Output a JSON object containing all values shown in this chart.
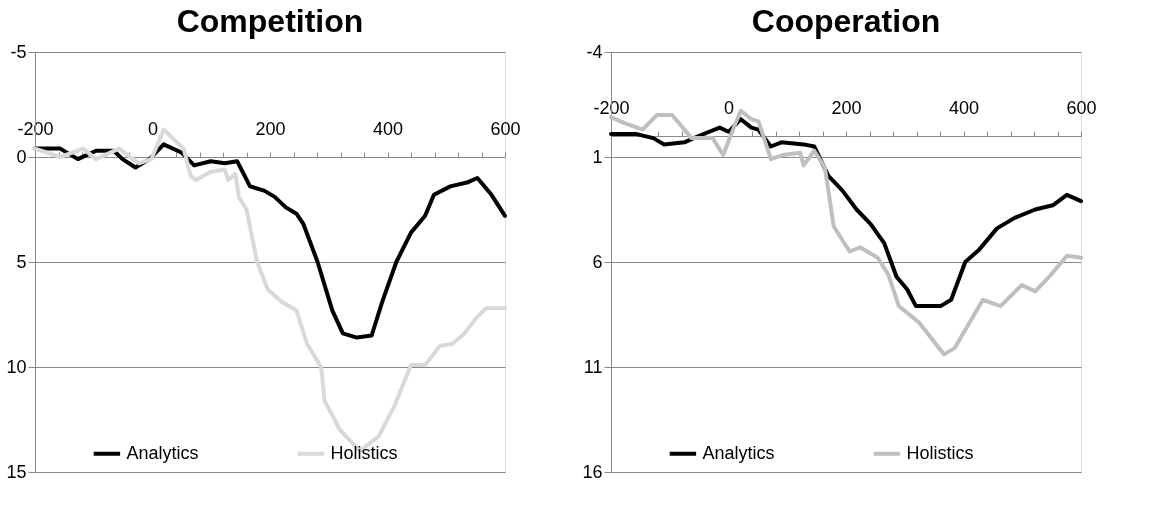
{
  "chart_data": [
    {
      "type": "line",
      "title": "Competition",
      "ylim": [
        15,
        -5
      ],
      "yticks": [
        -5,
        0,
        5,
        10,
        15
      ],
      "xlim": [
        -200,
        600
      ],
      "xticks": [
        -200,
        {
          "value": -160,
          "label": null
        },
        {
          "value": -120,
          "label": null
        },
        {
          "value": -80,
          "label": null
        },
        {
          "value": -40,
          "label": null
        },
        0,
        {
          "value": 40,
          "label": null
        },
        {
          "value": 80,
          "label": null
        },
        {
          "value": 120,
          "label": null
        },
        {
          "value": 160,
          "label": null
        },
        200,
        {
          "value": 240,
          "label": null
        },
        {
          "value": 280,
          "label": null
        },
        {
          "value": 320,
          "label": null
        },
        {
          "value": 360,
          "label": null
        },
        400,
        {
          "value": 440,
          "label": null
        },
        {
          "value": 480,
          "label": null
        },
        {
          "value": 520,
          "label": null
        },
        {
          "value": 560,
          "label": null
        },
        600
      ],
      "grid": "y",
      "legend": "bottom",
      "marker": "none",
      "line_style": "solid",
      "series": [
        {
          "name": "Analytics",
          "color": "#000000",
          "x": [
            -200,
            -157,
            -127,
            -96,
            -66,
            -51,
            -29,
            -5,
            19,
            50,
            71,
            99,
            123,
            144,
            166,
            190,
            208,
            227,
            245,
            257,
            281,
            306,
            324,
            348,
            373,
            391,
            415,
            440,
            464,
            479,
            507,
            537,
            553,
            577,
            600
          ],
          "values": [
            -0.4,
            -0.4,
            0.1,
            -0.3,
            -0.3,
            0.1,
            0.5,
            0.1,
            -0.6,
            -0.2,
            0.4,
            0.2,
            0.3,
            0.2,
            1.4,
            1.6,
            1.9,
            2.4,
            2.7,
            3.2,
            5.0,
            7.3,
            8.4,
            8.6,
            8.5,
            6.9,
            5.0,
            3.6,
            2.8,
            1.8,
            1.4,
            1.2,
            1.0,
            1.8,
            2.8
          ]
        },
        {
          "name": "Holistics",
          "color": "#d9d9d9",
          "x": [
            -200,
            -157,
            -118,
            -96,
            -57,
            -23,
            -2,
            19,
            38,
            53,
            65,
            74,
            99,
            123,
            129,
            141,
            147,
            160,
            178,
            196,
            220,
            245,
            263,
            287,
            293,
            319,
            353,
            385,
            411,
            440,
            464,
            489,
            510,
            531,
            550,
            568,
            600
          ],
          "values": [
            -0.4,
            0.0,
            -0.4,
            0.1,
            -0.4,
            0.3,
            0.1,
            -1.3,
            -0.8,
            -0.4,
            0.9,
            1.1,
            0.7,
            0.6,
            1.1,
            0.8,
            1.9,
            2.5,
            5.0,
            6.3,
            6.9,
            7.3,
            8.9,
            10.0,
            11.6,
            13.0,
            14.0,
            13.3,
            11.9,
            9.9,
            9.9,
            9.0,
            8.9,
            8.4,
            7.7,
            7.2,
            7.2
          ]
        }
      ]
    },
    {
      "type": "line",
      "title": "Cooperation",
      "ylim": [
        16,
        -4
      ],
      "yticks": [
        -4,
        1,
        6,
        11,
        16
      ],
      "xlim": [
        -200,
        600
      ],
      "xticks": [
        -200,
        {
          "value": -160,
          "label": null
        },
        {
          "value": -120,
          "label": null
        },
        {
          "value": -80,
          "label": null
        },
        {
          "value": -40,
          "label": null
        },
        0,
        {
          "value": 40,
          "label": null
        },
        {
          "value": 80,
          "label": null
        },
        {
          "value": 120,
          "label": null
        },
        {
          "value": 160,
          "label": null
        },
        200,
        {
          "value": 240,
          "label": null
        },
        {
          "value": 280,
          "label": null
        },
        {
          "value": 320,
          "label": null
        },
        {
          "value": 360,
          "label": null
        },
        400,
        {
          "value": 440,
          "label": null
        },
        {
          "value": 480,
          "label": null
        },
        {
          "value": 520,
          "label": null
        },
        {
          "value": 560,
          "label": null
        },
        600
      ],
      "grid": "y",
      "legend": "bottom",
      "marker": "none",
      "line_style": "solid",
      "series": [
        {
          "name": "Analytics",
          "color": "#000000",
          "x": [
            -200,
            -158,
            -128,
            -110,
            -75,
            -51,
            -15,
            0,
            21,
            39,
            51,
            72,
            90,
            128,
            146,
            170,
            194,
            218,
            242,
            265,
            286,
            304,
            319,
            361,
            379,
            403,
            427,
            457,
            487,
            522,
            552,
            576,
            600
          ],
          "values": [
            -0.1,
            -0.1,
            0.1,
            0.4,
            0.3,
            0.0,
            -0.4,
            -0.2,
            -0.8,
            -0.4,
            -0.3,
            0.5,
            0.3,
            0.4,
            0.5,
            1.9,
            2.6,
            3.5,
            4.2,
            5.1,
            6.7,
            7.3,
            8.1,
            8.1,
            7.8,
            6.0,
            5.4,
            4.4,
            3.9,
            3.5,
            3.3,
            2.8,
            3.1
          ]
        },
        {
          "name": "Holistics",
          "color": "#bfbfbf",
          "x": [
            -200,
            -176,
            -146,
            -122,
            -96,
            -63,
            -27,
            -9,
            9,
            21,
            39,
            51,
            72,
            93,
            122,
            128,
            146,
            164,
            179,
            206,
            224,
            254,
            272,
            290,
            325,
            367,
            385,
            433,
            463,
            499,
            522,
            546,
            576,
            600
          ],
          "values": [
            -0.9,
            -0.6,
            -0.3,
            -1.0,
            -1.0,
            0.1,
            0.1,
            0.9,
            -0.4,
            -1.2,
            -0.8,
            -0.7,
            1.1,
            0.9,
            0.8,
            1.4,
            0.7,
            1.5,
            4.3,
            5.5,
            5.3,
            5.8,
            6.6,
            8.1,
            8.9,
            10.4,
            10.1,
            7.8,
            8.1,
            7.1,
            7.4,
            6.7,
            5.7,
            5.8
          ]
        }
      ]
    }
  ]
}
